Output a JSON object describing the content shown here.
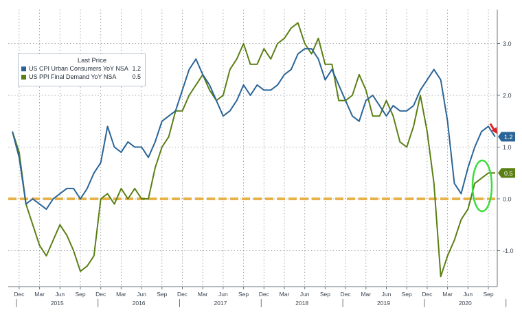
{
  "legend": {
    "title": "Last Price",
    "items": [
      {
        "name": "US CPI Urban Consumers YoY NSA",
        "value": "1.2",
        "color": "#2a6496"
      },
      {
        "name": "US PPI Final Demand YoY NSA",
        "value": "0.5",
        "color": "#5a7f14"
      }
    ]
  },
  "chart_data": {
    "type": "line",
    "ylim": [
      -1.5,
      3.5
    ],
    "yticks": [
      "3.0",
      "2.0",
      "1.0",
      "0.0",
      "-1.0"
    ],
    "ytick_values": [
      3.0,
      2.0,
      1.0,
      0.0,
      -1.0
    ],
    "month_labels": [
      "Dec",
      "Mar",
      "Jun",
      "Sep",
      "Dec",
      "Mar",
      "Jun",
      "Sep",
      "Dec",
      "Mar",
      "Jun",
      "Sep",
      "Dec",
      "Mar",
      "Jun",
      "Sep",
      "Dec",
      "Mar",
      "Jun",
      "Sep",
      "Dec",
      "Mar",
      "Jun",
      "Sep"
    ],
    "year_labels": [
      "2015",
      "2016",
      "2017",
      "2018",
      "2019",
      "2020"
    ],
    "grid": true,
    "reference_line": 0.0,
    "series": [
      {
        "name": "US CPI Urban Consumers YoY NSA",
        "color": "#2a6496",
        "last_label": "1.2",
        "x": [
          "2014-11",
          "2014-12",
          "2015-01",
          "2015-02",
          "2015-03",
          "2015-04",
          "2015-05",
          "2015-06",
          "2015-07",
          "2015-08",
          "2015-09",
          "2015-10",
          "2015-11",
          "2015-12",
          "2016-01",
          "2016-02",
          "2016-03",
          "2016-04",
          "2016-05",
          "2016-06",
          "2016-07",
          "2016-08",
          "2016-09",
          "2016-10",
          "2016-11",
          "2016-12",
          "2017-01",
          "2017-02",
          "2017-03",
          "2017-04",
          "2017-05",
          "2017-06",
          "2017-07",
          "2017-08",
          "2017-09",
          "2017-10",
          "2017-11",
          "2017-12",
          "2018-01",
          "2018-02",
          "2018-03",
          "2018-04",
          "2018-05",
          "2018-06",
          "2018-07",
          "2018-08",
          "2018-09",
          "2018-10",
          "2018-11",
          "2018-12",
          "2019-01",
          "2019-02",
          "2019-03",
          "2019-04",
          "2019-05",
          "2019-06",
          "2019-07",
          "2019-08",
          "2019-09",
          "2019-10",
          "2019-11",
          "2019-12",
          "2020-01",
          "2020-02",
          "2020-03",
          "2020-04",
          "2020-05",
          "2020-06",
          "2020-07",
          "2020-08",
          "2020-09",
          "2020-10"
        ],
        "y": [
          1.3,
          0.8,
          -0.1,
          0.0,
          -0.1,
          -0.2,
          0.0,
          0.1,
          0.2,
          0.2,
          0.0,
          0.2,
          0.5,
          0.7,
          1.4,
          1.0,
          0.9,
          1.1,
          1.0,
          1.0,
          0.8,
          1.1,
          1.5,
          1.6,
          1.7,
          2.1,
          2.5,
          2.7,
          2.4,
          2.2,
          1.9,
          1.6,
          1.7,
          1.9,
          2.2,
          2.0,
          2.2,
          2.1,
          2.1,
          2.2,
          2.4,
          2.5,
          2.8,
          2.9,
          2.9,
          2.7,
          2.3,
          2.5,
          2.2,
          1.9,
          1.6,
          1.5,
          1.9,
          2.0,
          1.8,
          1.6,
          1.8,
          1.7,
          1.7,
          1.8,
          2.1,
          2.3,
          2.5,
          2.3,
          1.5,
          0.3,
          0.1,
          0.6,
          1.0,
          1.3,
          1.4,
          1.2
        ]
      },
      {
        "name": "US PPI Final Demand YoY NSA",
        "color": "#5a7f14",
        "last_label": "0.5",
        "x": [
          "2014-11",
          "2014-12",
          "2015-01",
          "2015-02",
          "2015-03",
          "2015-04",
          "2015-05",
          "2015-06",
          "2015-07",
          "2015-08",
          "2015-09",
          "2015-10",
          "2015-11",
          "2015-12",
          "2016-01",
          "2016-02",
          "2016-03",
          "2016-04",
          "2016-05",
          "2016-06",
          "2016-07",
          "2016-08",
          "2016-09",
          "2016-10",
          "2016-11",
          "2016-12",
          "2017-01",
          "2017-02",
          "2017-03",
          "2017-04",
          "2017-05",
          "2017-06",
          "2017-07",
          "2017-08",
          "2017-09",
          "2017-10",
          "2017-11",
          "2017-12",
          "2018-01",
          "2018-02",
          "2018-03",
          "2018-04",
          "2018-05",
          "2018-06",
          "2018-07",
          "2018-08",
          "2018-09",
          "2018-10",
          "2018-11",
          "2018-12",
          "2019-01",
          "2019-02",
          "2019-03",
          "2019-04",
          "2019-05",
          "2019-06",
          "2019-07",
          "2019-08",
          "2019-09",
          "2019-10",
          "2019-11",
          "2019-12",
          "2020-01",
          "2020-02",
          "2020-03",
          "2020-04",
          "2020-05",
          "2020-06",
          "2020-07",
          "2020-08",
          "2020-09",
          "2020-10"
        ],
        "y": [
          1.3,
          0.9,
          -0.1,
          -0.5,
          -0.9,
          -1.1,
          -0.8,
          -0.5,
          -0.7,
          -1.0,
          -1.4,
          -1.3,
          -1.1,
          0.0,
          0.1,
          -0.1,
          0.2,
          0.0,
          0.2,
          0.0,
          0.0,
          0.6,
          1.0,
          1.2,
          1.7,
          1.7,
          2.0,
          2.2,
          2.4,
          2.1,
          1.9,
          2.0,
          2.5,
          2.7,
          3.0,
          2.6,
          2.6,
          2.9,
          2.7,
          3.0,
          3.1,
          3.3,
          3.4,
          3.0,
          2.8,
          3.1,
          2.6,
          2.6,
          1.9,
          1.9,
          2.0,
          2.4,
          2.1,
          1.6,
          1.6,
          1.9,
          1.6,
          1.1,
          1.0,
          1.4,
          2.0,
          1.3,
          0.3,
          -1.5,
          -1.1,
          -0.8,
          -0.4,
          -0.2,
          0.3,
          0.4,
          0.5,
          0.5
        ]
      }
    ]
  }
}
